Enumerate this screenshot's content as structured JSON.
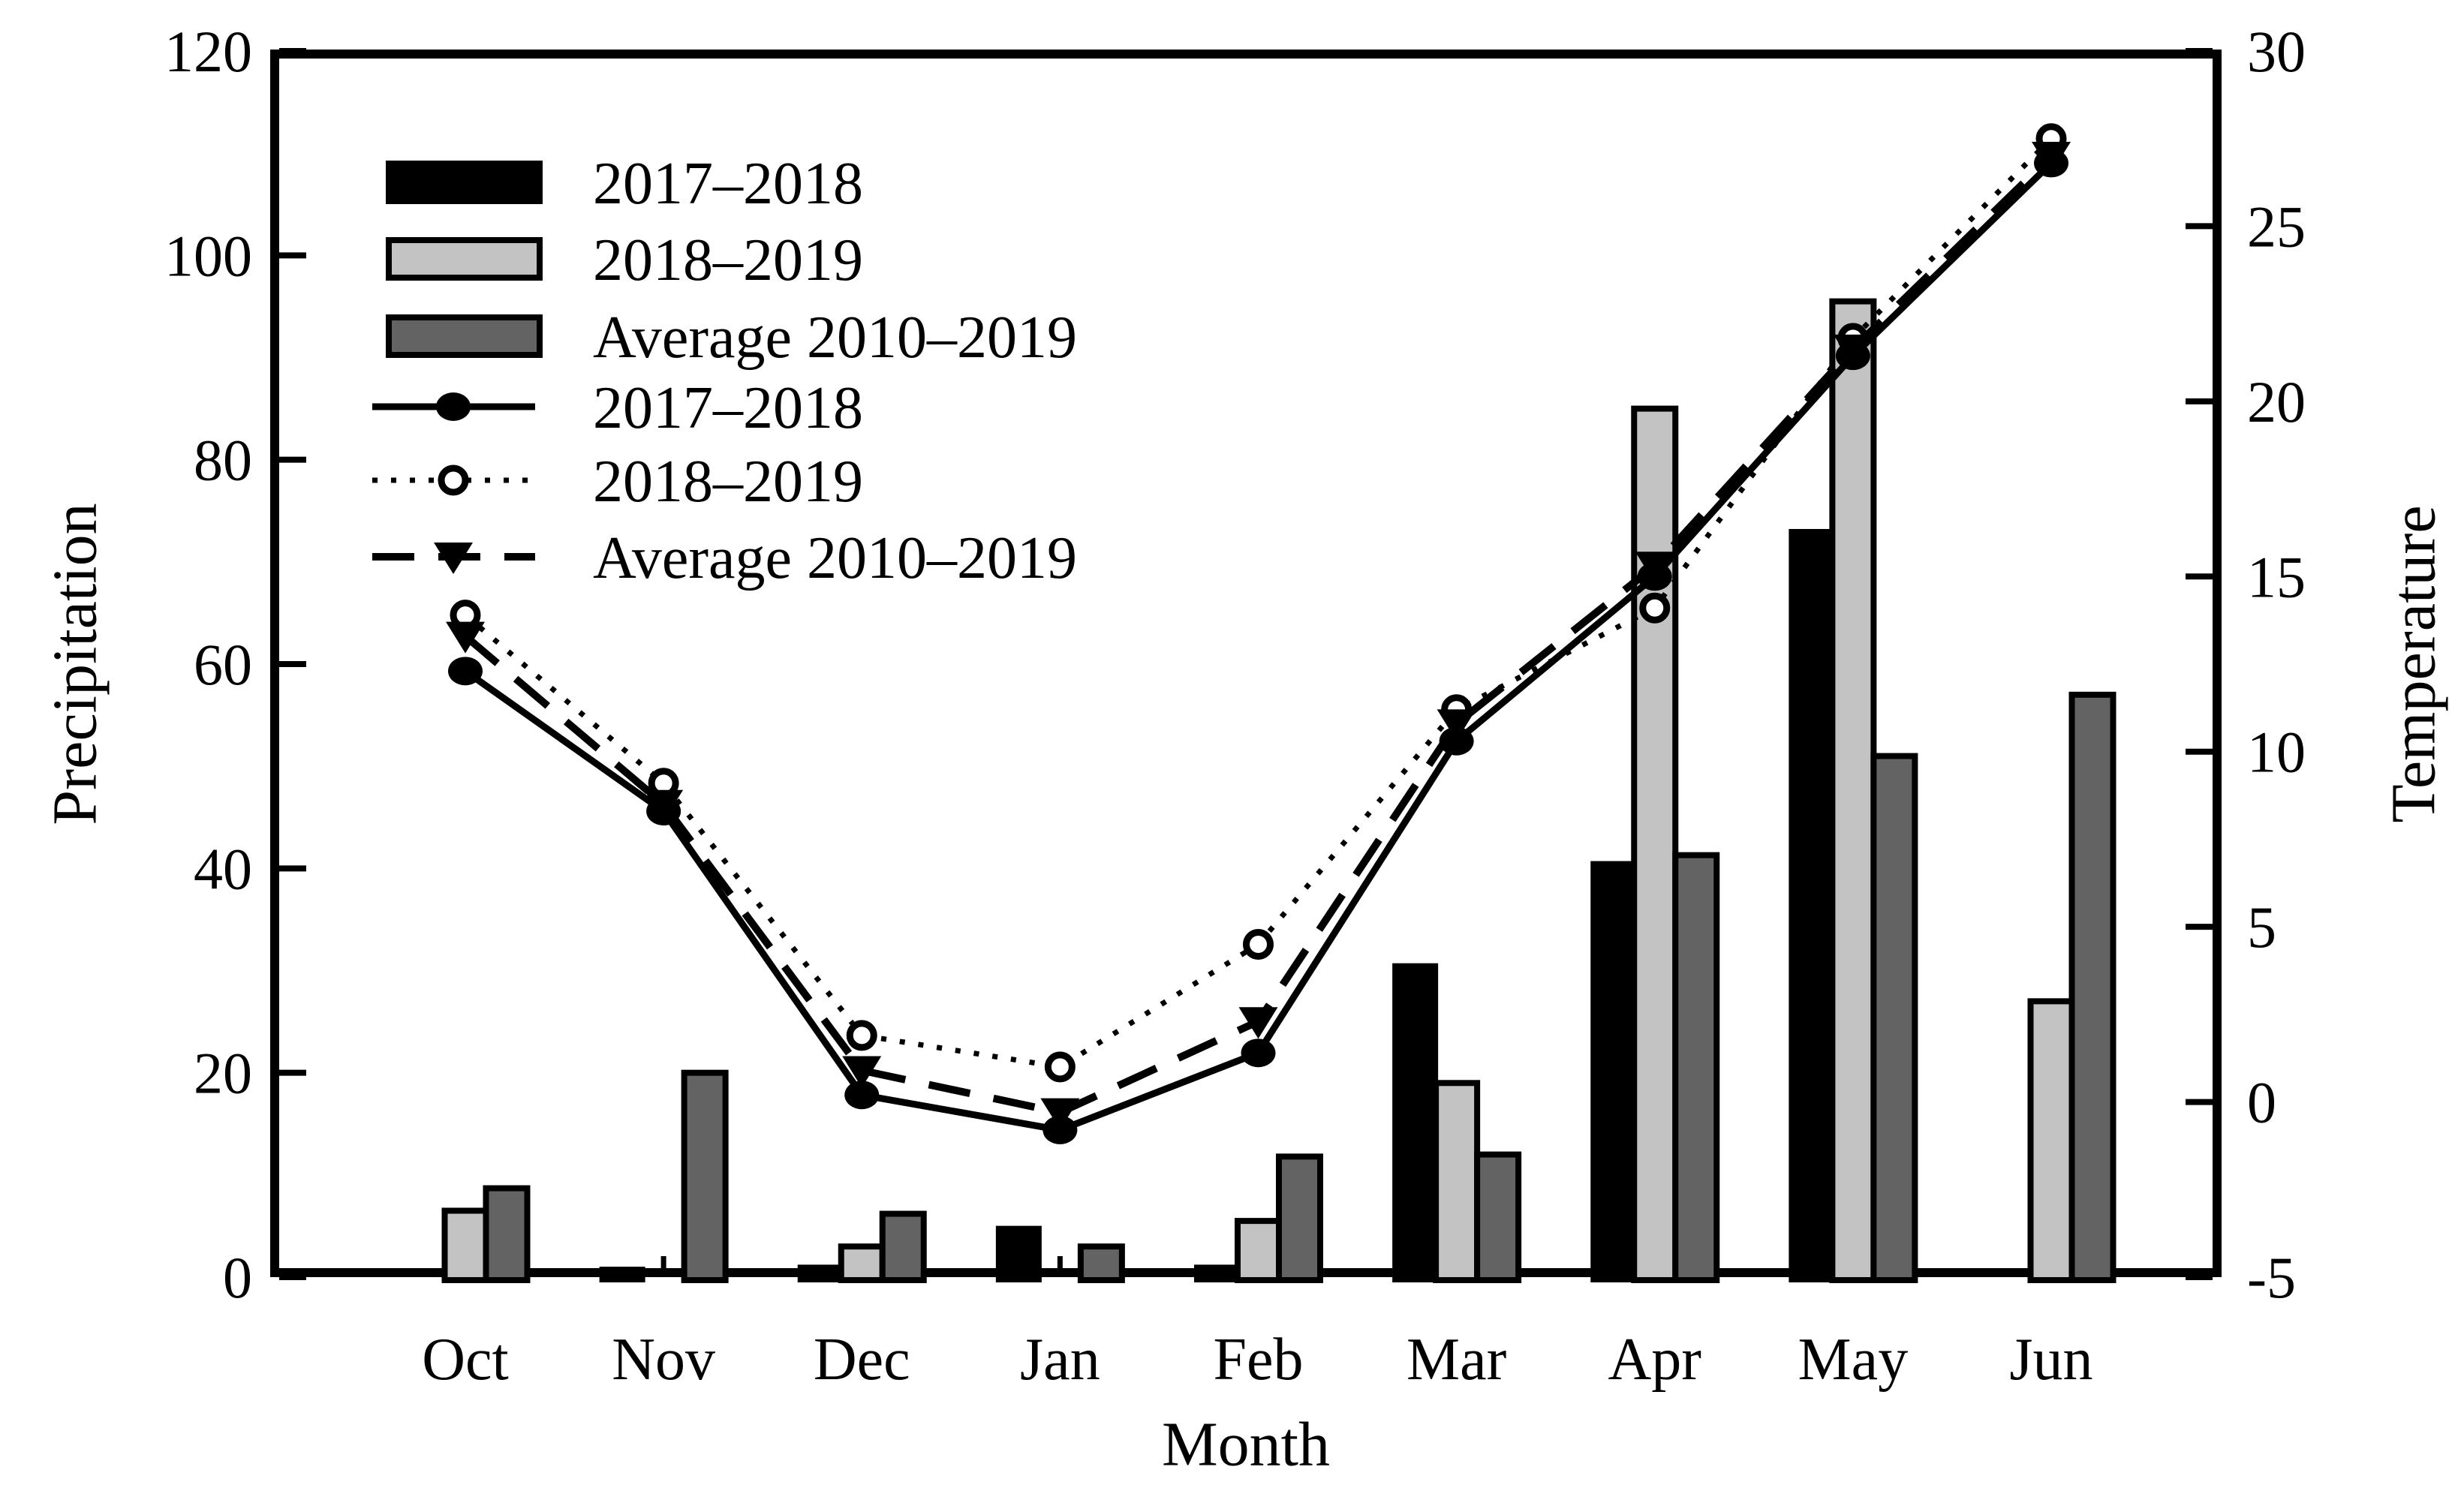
{
  "figure": {
    "background": "#ffffff"
  },
  "chart_data": {
    "type": "bar+line",
    "categories": [
      "Oct",
      "Nov",
      "Dec",
      "Jan",
      "Feb",
      "Mar",
      "Apr",
      "May",
      "Jun"
    ],
    "bar_series": [
      {
        "name": "2017–2018",
        "color": "#000000",
        "values": [
          0,
          0.8,
          1,
          4.8,
          1,
          30.5,
          40.5,
          73,
          0
        ]
      },
      {
        "name": "2018–2019",
        "color": "#c3c3c3",
        "values": [
          6.5,
          0,
          3,
          0,
          5.5,
          19,
          85,
          95.5,
          27
        ]
      },
      {
        "name": "Average 2010–2019",
        "color": "#636363",
        "values": [
          8.7,
          20,
          6.2,
          3,
          11.8,
          12,
          41.3,
          51,
          57
        ]
      }
    ],
    "line_series": [
      {
        "name": "2017–2018",
        "marker": "filled-circle",
        "line": "solid",
        "values": [
          12.3,
          8.3,
          0.2,
          -0.8,
          1.4,
          10.3,
          15,
          21.3,
          26.8
        ]
      },
      {
        "name": "2018–2019",
        "marker": "open-circle",
        "line": "dotted",
        "values": [
          13.9,
          9.1,
          1.9,
          1,
          4.5,
          11.2,
          14.1,
          21.8,
          27.5
        ]
      },
      {
        "name": "Average 2010–2019",
        "marker": "filled-triangle-down",
        "line": "dashed",
        "values": [
          13.3,
          8.5,
          0.9,
          -0.3,
          2.3,
          10.8,
          15.3,
          21.5,
          27
        ]
      }
    ],
    "left_axis": {
      "label": "Precipitation",
      "min": 0,
      "max": 120,
      "tick_step": 20,
      "tick_labels": [
        "0",
        "20",
        "40",
        "60",
        "80",
        "100",
        "120"
      ]
    },
    "right_axis": {
      "label": "Temperature",
      "min": -5,
      "max": 30,
      "tick_step": 5,
      "tick_labels": [
        "-5",
        "0",
        "5",
        "10",
        "15",
        "20",
        "25",
        "30"
      ]
    },
    "x_axis": {
      "label": "Month"
    },
    "legend": [
      "2017–2018",
      "2018–2019",
      "Average 2010–2019",
      "2017–2018",
      "2018–2019",
      "Average 2010–2019"
    ],
    "grid": false,
    "legend_position": "upper-left-inside"
  }
}
